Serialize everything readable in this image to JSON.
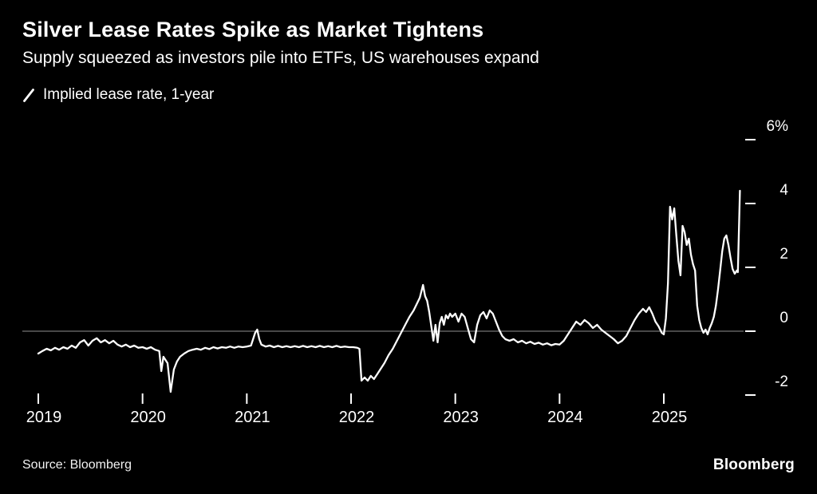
{
  "header": {
    "title": "Silver Lease Rates Spike as Market Tightens",
    "subtitle": "Supply squeezed as investors pile into ETFs, US warehouses expand"
  },
  "legend": {
    "label": "Implied lease rate, 1-year"
  },
  "footer": {
    "source": "Source: Bloomberg",
    "brand": "Bloomberg"
  },
  "colors": {
    "background": "#000000",
    "line": "#ffffff",
    "zero_line": "#8f8f8f",
    "text": "#ffffff"
  },
  "chart_data": {
    "type": "line",
    "title": "Silver Lease Rates Spike as Market Tightens",
    "subtitle": "Supply squeezed as investors pile into ETFs, US warehouses expand",
    "ylabel": "Implied lease rate, 1-year (%)",
    "xlabel": "",
    "grid": false,
    "legend_position": "top-left",
    "xlim": [
      2019.0,
      2025.75
    ],
    "ylim": [
      -2.6,
      6.5
    ],
    "x_ticks": [
      2019,
      2020,
      2021,
      2022,
      2023,
      2024,
      2025
    ],
    "y_ticks": [
      {
        "value": 6,
        "label": "6%"
      },
      {
        "value": 4,
        "label": "4"
      },
      {
        "value": 2,
        "label": "2"
      },
      {
        "value": 0,
        "label": "0"
      },
      {
        "value": -2,
        "label": "-2"
      }
    ],
    "zero_line": 0,
    "series": [
      {
        "name": "Implied lease rate, 1-year",
        "x": [
          2019.0,
          2019.04,
          2019.08,
          2019.12,
          2019.16,
          2019.2,
          2019.24,
          2019.28,
          2019.32,
          2019.36,
          2019.4,
          2019.44,
          2019.48,
          2019.52,
          2019.56,
          2019.6,
          2019.64,
          2019.68,
          2019.72,
          2019.76,
          2019.8,
          2019.84,
          2019.88,
          2019.92,
          2019.96,
          2020.0,
          2020.04,
          2020.08,
          2020.12,
          2020.16,
          2020.18,
          2020.2,
          2020.24,
          2020.27,
          2020.3,
          2020.33,
          2020.36,
          2020.4,
          2020.44,
          2020.48,
          2020.52,
          2020.56,
          2020.6,
          2020.64,
          2020.68,
          2020.72,
          2020.76,
          2020.8,
          2020.84,
          2020.88,
          2020.92,
          2020.96,
          2021.0,
          2021.04,
          2021.08,
          2021.1,
          2021.12,
          2021.14,
          2021.18,
          2021.22,
          2021.26,
          2021.3,
          2021.34,
          2021.38,
          2021.42,
          2021.46,
          2021.5,
          2021.54,
          2021.58,
          2021.62,
          2021.66,
          2021.7,
          2021.74,
          2021.78,
          2021.82,
          2021.86,
          2021.9,
          2021.94,
          2021.98,
          2022.02,
          2022.06,
          2022.08,
          2022.1,
          2022.13,
          2022.16,
          2022.19,
          2022.22,
          2022.25,
          2022.28,
          2022.32,
          2022.36,
          2022.4,
          2022.44,
          2022.48,
          2022.52,
          2022.56,
          2022.6,
          2022.63,
          2022.66,
          2022.69,
          2022.71,
          2022.73,
          2022.75,
          2022.77,
          2022.79,
          2022.81,
          2022.83,
          2022.85,
          2022.87,
          2022.89,
          2022.91,
          2022.93,
          2022.95,
          2022.97,
          2023.0,
          2023.03,
          2023.06,
          2023.09,
          2023.12,
          2023.15,
          2023.18,
          2023.21,
          2023.24,
          2023.27,
          2023.3,
          2023.33,
          2023.36,
          2023.39,
          2023.42,
          2023.45,
          2023.48,
          2023.52,
          2023.56,
          2023.6,
          2023.64,
          2023.68,
          2023.72,
          2023.76,
          2023.8,
          2023.84,
          2023.88,
          2023.92,
          2023.96,
          2024.0,
          2024.04,
          2024.08,
          2024.12,
          2024.16,
          2024.2,
          2024.24,
          2024.28,
          2024.32,
          2024.36,
          2024.4,
          2024.44,
          2024.48,
          2024.52,
          2024.56,
          2024.6,
          2024.64,
          2024.68,
          2024.72,
          2024.76,
          2024.8,
          2024.83,
          2024.86,
          2024.89,
          2024.92,
          2024.95,
          2024.98,
          2025.0,
          2025.02,
          2025.04,
          2025.06,
          2025.08,
          2025.1,
          2025.12,
          2025.14,
          2025.16,
          2025.18,
          2025.2,
          2025.22,
          2025.24,
          2025.26,
          2025.28,
          2025.3,
          2025.32,
          2025.34,
          2025.36,
          2025.38,
          2025.4,
          2025.42,
          2025.44,
          2025.46,
          2025.48,
          2025.5,
          2025.52,
          2025.54,
          2025.56,
          2025.58,
          2025.6,
          2025.62,
          2025.64,
          2025.66,
          2025.68,
          2025.7,
          2025.71,
          2025.73
        ],
        "y": [
          -0.7,
          -0.62,
          -0.55,
          -0.6,
          -0.52,
          -0.58,
          -0.5,
          -0.55,
          -0.45,
          -0.52,
          -0.35,
          -0.28,
          -0.45,
          -0.3,
          -0.22,
          -0.35,
          -0.28,
          -0.38,
          -0.3,
          -0.42,
          -0.48,
          -0.42,
          -0.5,
          -0.45,
          -0.52,
          -0.5,
          -0.55,
          -0.5,
          -0.58,
          -0.62,
          -1.25,
          -0.8,
          -1.0,
          -1.9,
          -1.2,
          -0.95,
          -0.8,
          -0.7,
          -0.62,
          -0.58,
          -0.55,
          -0.58,
          -0.52,
          -0.56,
          -0.5,
          -0.54,
          -0.5,
          -0.52,
          -0.48,
          -0.52,
          -0.48,
          -0.5,
          -0.48,
          -0.45,
          -0.05,
          0.05,
          -0.25,
          -0.42,
          -0.48,
          -0.45,
          -0.5,
          -0.46,
          -0.5,
          -0.47,
          -0.5,
          -0.47,
          -0.5,
          -0.46,
          -0.5,
          -0.47,
          -0.5,
          -0.46,
          -0.5,
          -0.47,
          -0.5,
          -0.46,
          -0.5,
          -0.48,
          -0.5,
          -0.5,
          -0.52,
          -0.55,
          -1.55,
          -1.45,
          -1.55,
          -1.4,
          -1.5,
          -1.35,
          -1.2,
          -1.0,
          -0.75,
          -0.55,
          -0.3,
          -0.05,
          0.2,
          0.45,
          0.65,
          0.85,
          1.05,
          1.45,
          1.1,
          0.95,
          0.6,
          0.15,
          -0.3,
          0.2,
          -0.35,
          0.25,
          0.45,
          0.2,
          0.5,
          0.4,
          0.55,
          0.45,
          0.55,
          0.3,
          0.55,
          0.45,
          0.1,
          -0.25,
          -0.35,
          0.2,
          0.5,
          0.6,
          0.4,
          0.65,
          0.55,
          0.3,
          0.05,
          -0.15,
          -0.25,
          -0.3,
          -0.25,
          -0.35,
          -0.3,
          -0.38,
          -0.33,
          -0.4,
          -0.36,
          -0.42,
          -0.38,
          -0.44,
          -0.4,
          -0.42,
          -0.3,
          -0.1,
          0.1,
          0.3,
          0.2,
          0.35,
          0.25,
          0.1,
          0.2,
          0.05,
          -0.05,
          -0.15,
          -0.25,
          -0.38,
          -0.3,
          -0.15,
          0.1,
          0.35,
          0.55,
          0.7,
          0.6,
          0.75,
          0.55,
          0.3,
          0.15,
          -0.05,
          -0.1,
          0.4,
          1.5,
          3.9,
          3.5,
          3.85,
          3.0,
          2.2,
          1.75,
          3.3,
          3.1,
          2.7,
          2.9,
          2.4,
          2.1,
          1.9,
          0.8,
          0.35,
          0.1,
          -0.05,
          0.05,
          -0.1,
          0.1,
          0.25,
          0.45,
          0.8,
          1.3,
          1.9,
          2.5,
          2.9,
          3.0,
          2.7,
          2.3,
          1.95,
          1.8,
          1.9,
          1.85,
          4.4
        ]
      }
    ]
  }
}
